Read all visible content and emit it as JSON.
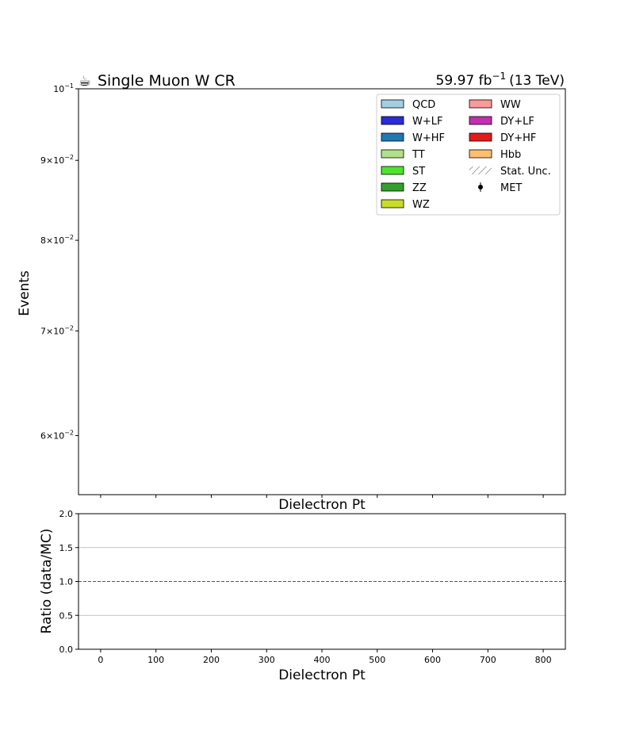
{
  "header": {
    "title_icon": "☕",
    "title": "Single Muon W CR",
    "lumi_value": "59.97 fb",
    "lumi_exp": "−1",
    "lumi_energy": "(13 TeV)"
  },
  "chart_data": [
    {
      "type": "bar",
      "name": "main-panel",
      "ylabel": "Events",
      "xlabel": "Dielectron Pt",
      "yscale": "log",
      "ylim": [
        0.055,
        0.1
      ],
      "xlim": [
        -40,
        840
      ],
      "y_ticks": [
        {
          "value": 0.1,
          "mant": "",
          "base": "10",
          "exp": "−1"
        },
        {
          "value": 0.09,
          "mant": "9×",
          "base": "10",
          "exp": "−2"
        },
        {
          "value": 0.08,
          "mant": "8×",
          "base": "10",
          "exp": "−2"
        },
        {
          "value": 0.07,
          "mant": "7×",
          "base": "10",
          "exp": "−2"
        },
        {
          "value": 0.06,
          "mant": "6×",
          "base": "10",
          "exp": "−2"
        }
      ],
      "x_ticks": [
        0,
        100,
        200,
        300,
        400,
        500,
        600,
        700,
        800
      ],
      "series": [],
      "legend": {
        "placement": "top-right",
        "entries": [
          {
            "label": "QCD",
            "color": "#a6cee3",
            "kind": "patch"
          },
          {
            "label": "W+LF",
            "color": "#2b2bd9",
            "kind": "patch"
          },
          {
            "label": "W+HF",
            "color": "#1f78b4",
            "kind": "patch"
          },
          {
            "label": "TT",
            "color": "#b2df8a",
            "kind": "patch"
          },
          {
            "label": "ST",
            "color": "#4ee32e",
            "kind": "patch"
          },
          {
            "label": "ZZ",
            "color": "#33a02c",
            "kind": "patch"
          },
          {
            "label": "WZ",
            "color": "#c9dc2b",
            "kind": "patch"
          },
          {
            "label": "WW",
            "color": "#fb9a99",
            "kind": "patch"
          },
          {
            "label": "DY+LF",
            "color": "#c62eb1",
            "kind": "patch"
          },
          {
            "label": "DY+HF",
            "color": "#e31a1c",
            "kind": "patch"
          },
          {
            "label": "Hbb",
            "color": "#fdbf6f",
            "kind": "patch"
          },
          {
            "label": "Stat. Unc.",
            "color": "#555555",
            "kind": "hatch"
          },
          {
            "label": "MET",
            "color": "#000000",
            "kind": "errorbar"
          }
        ]
      }
    },
    {
      "type": "line",
      "name": "ratio-panel",
      "ylabel": "Ratio (data/MC)",
      "xlabel": "Dielectron Pt",
      "ylim": [
        0.0,
        2.0
      ],
      "xlim": [
        -40,
        840
      ],
      "y_ticks": [
        "0.0",
        "0.5",
        "1.0",
        "1.5",
        "2.0"
      ],
      "x_ticks": [
        0,
        100,
        200,
        300,
        400,
        500,
        600,
        700,
        800
      ],
      "grid_y": [
        0.5,
        1.5,
        2.0
      ],
      "reference_line": 1.0,
      "series": []
    }
  ]
}
